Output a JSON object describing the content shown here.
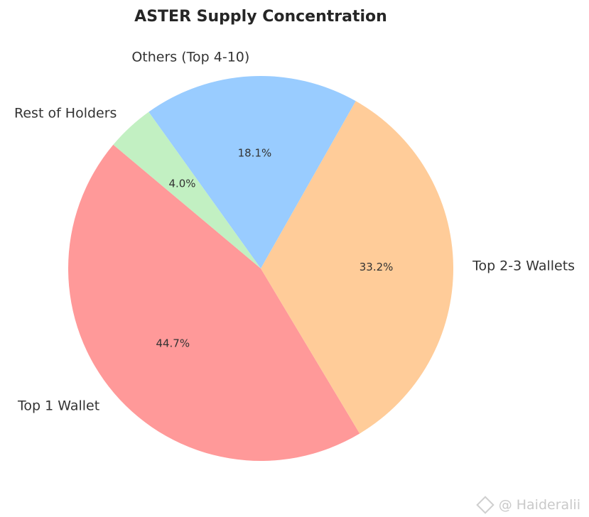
{
  "chart_data": {
    "type": "pie",
    "title": "ASTER Supply Concentration",
    "categories": [
      "Top 1 Wallet",
      "Top 2-3 Wallets",
      "Others (Top 4-10)",
      "Rest of Holders"
    ],
    "values": [
      44.7,
      33.2,
      18.1,
      4.0
    ],
    "labels": [
      "44.7%",
      "33.2%",
      "18.1%",
      "4.0%"
    ],
    "colors": [
      "#ff9999",
      "#ffcc99",
      "#99ccff",
      "#c2f0c2"
    ],
    "start_angle_deg": 140,
    "direction": "counterclockwise"
  },
  "watermark": {
    "icon": "binance-diamond-icon",
    "text": "@ Haideralii"
  }
}
